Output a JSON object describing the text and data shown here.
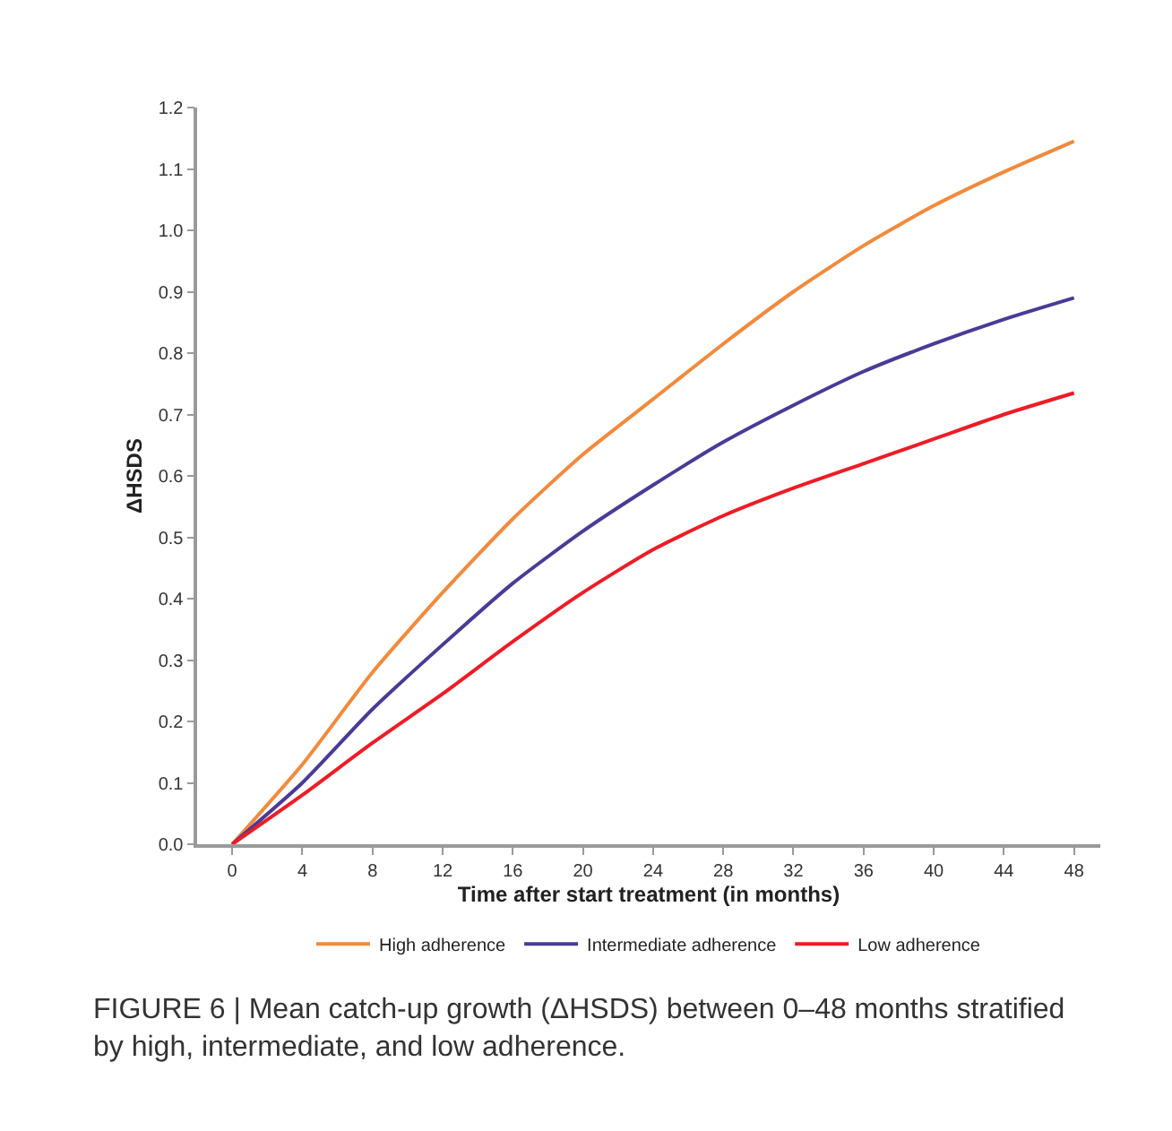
{
  "chart_data": {
    "type": "line",
    "xlabel": "Time after start treatment (in months)",
    "ylabel": "ΔHSDS",
    "x": [
      0,
      4,
      8,
      12,
      16,
      20,
      24,
      28,
      32,
      36,
      40,
      44,
      48
    ],
    "series": [
      {
        "name": "High adherence",
        "color": "#f28a3c",
        "values": [
          0,
          0.13,
          0.28,
          0.41,
          0.53,
          0.635,
          0.725,
          0.815,
          0.9,
          0.975,
          1.04,
          1.095,
          1.145
        ]
      },
      {
        "name": "Intermediate adherence",
        "color": "#4b3a96",
        "values": [
          0,
          0.1,
          0.22,
          0.325,
          0.425,
          0.51,
          0.585,
          0.655,
          0.715,
          0.77,
          0.815,
          0.855,
          0.89
        ]
      },
      {
        "name": "Low adherence",
        "color": "#ee1c25",
        "values": [
          0,
          0.08,
          0.165,
          0.245,
          0.33,
          0.41,
          0.48,
          0.535,
          0.58,
          0.62,
          0.66,
          0.7,
          0.735
        ]
      }
    ],
    "xlim": [
      -2,
      49.5
    ],
    "xticks": [
      0,
      4,
      8,
      12,
      16,
      20,
      24,
      28,
      32,
      36,
      40,
      44,
      48
    ],
    "ylim": [
      0,
      1.2
    ],
    "yticks": [
      {
        "value": 0,
        "label": "0.0"
      },
      0.1,
      0.2,
      0.3,
      0.4,
      0.5,
      0.6,
      0.7,
      0.8,
      0.9,
      {
        "value": 1.0,
        "label": "1.0"
      },
      1.1,
      1.2
    ],
    "legend": "bottom",
    "marker": "none",
    "line_style": "solid",
    "annotations": [
      "FIGURE 6 | Mean catch-up growth (ΔHSDS) between 0–48 months stratified by high, intermediate, and low adherence."
    ]
  }
}
